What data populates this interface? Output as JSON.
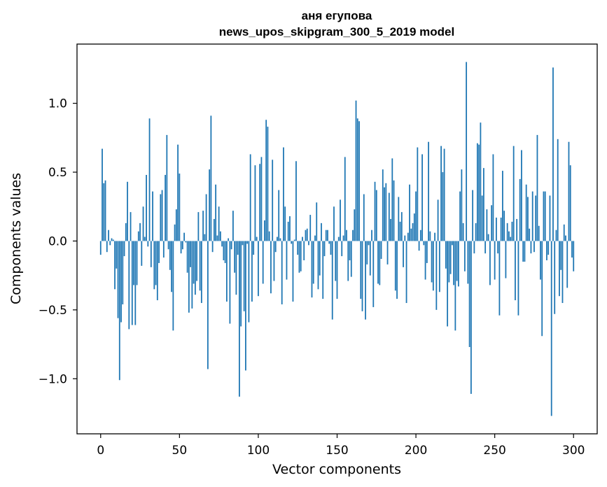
{
  "chart_data": {
    "type": "bar",
    "title": "аня егупова",
    "subtitle": "news_upos_skipgram_300_5_2019 model",
    "xlabel": "Vector components",
    "ylabel": "Components values",
    "xlim": [
      -15,
      315
    ],
    "ylim": [
      -1.4,
      1.43
    ],
    "xticks": [
      0,
      50,
      100,
      150,
      200,
      250,
      300
    ],
    "yticks": [
      -1.0,
      -0.5,
      0.0,
      0.5,
      1.0
    ],
    "ytick_labels": [
      "−1.0",
      "−0.5",
      "0.0",
      "0.5",
      "1.0"
    ],
    "grid": false,
    "legend": "none",
    "bar_color": "#1f77b4",
    "values": [
      -0.1,
      0.67,
      0.42,
      0.44,
      -0.08,
      0.08,
      -0.03,
      0.02,
      0.01,
      -0.35,
      -0.2,
      -0.56,
      -1.01,
      -0.59,
      -0.46,
      -0.11,
      0.13,
      0.43,
      -0.64,
      0.21,
      -0.61,
      -0.32,
      -0.61,
      -0.32,
      0.07,
      0.13,
      -0.18,
      0.25,
      0.03,
      0.48,
      -0.04,
      0.89,
      -0.19,
      0.36,
      -0.35,
      -0.32,
      -0.43,
      -0.16,
      0.34,
      0.37,
      -0.12,
      0.48,
      0.77,
      -0.06,
      -0.21,
      -0.37,
      -0.65,
      0.12,
      0.23,
      0.7,
      0.49,
      -0.09,
      -0.06,
      0.06,
      -0.01,
      -0.23,
      -0.52,
      -0.19,
      -0.49,
      -0.31,
      -0.39,
      -0.29,
      0.21,
      -0.36,
      -0.45,
      0.22,
      0.05,
      0.34,
      -0.93,
      0.52,
      0.91,
      -0.08,
      0.16,
      0.41,
      0.04,
      0.25,
      0.07,
      -0.04,
      -0.14,
      -0.16,
      -0.44,
      0.02,
      -0.6,
      -0.06,
      0.22,
      -0.23,
      -0.39,
      -0.1,
      -1.13,
      -0.62,
      -0.03,
      -0.51,
      -0.94,
      -0.02,
      -0.59,
      0.63,
      -0.44,
      -0.1,
      0.55,
      0.03,
      -0.4,
      0.56,
      0.61,
      -0.31,
      0.15,
      0.88,
      0.83,
      0.07,
      -0.38,
      0.59,
      -0.29,
      -0.08,
      0.03,
      0.37,
      0.02,
      -0.46,
      0.68,
      0.25,
      -0.28,
      0.14,
      0.18,
      -0.02,
      -0.44,
      0.01,
      0.58,
      -0.1,
      -0.23,
      -0.22,
      0.03,
      -0.14,
      0.08,
      0.09,
      -0.03,
      0.19,
      -0.41,
      -0.31,
      0.04,
      0.28,
      -0.35,
      -0.25,
      0.13,
      -0.42,
      -0.11,
      0.08,
      0.08,
      -0.02,
      -0.1,
      -0.57,
      0.25,
      -0.29,
      -0.42,
      0.03,
      0.3,
      -0.11,
      0.04,
      0.61,
      0.08,
      -0.29,
      -0.14,
      -0.26,
      0.08,
      0.23,
      1.02,
      0.89,
      0.87,
      -0.42,
      -0.51,
      0.34,
      -0.57,
      -0.17,
      -0.03,
      -0.25,
      0.08,
      -0.48,
      0.43,
      0.37,
      -0.31,
      -0.32,
      -0.13,
      0.52,
      0.39,
      0.42,
      -0.17,
      0.35,
      0.16,
      0.6,
      0.44,
      -0.36,
      -0.42,
      0.32,
      0.14,
      0.21,
      -0.19,
      0.04,
      -0.45,
      0.06,
      0.41,
      0.09,
      0.13,
      0.2,
      0.36,
      0.68,
      -0.07,
      0.08,
      0.63,
      -0.03,
      -0.28,
      -0.16,
      0.72,
      0.07,
      -0.3,
      -0.36,
      0.06,
      -0.5,
      0.3,
      -0.37,
      0.69,
      0.5,
      0.67,
      -0.2,
      -0.62,
      -0.3,
      -0.24,
      -0.03,
      -0.32,
      -0.65,
      -0.29,
      -0.33,
      0.36,
      0.52,
      0.13,
      -0.22,
      1.3,
      -0.31,
      -0.77,
      -1.11,
      0.37,
      -0.09,
      0.13,
      0.71,
      0.7,
      0.86,
      0.33,
      0.53,
      -0.09,
      0.23,
      0.05,
      -0.32,
      0.26,
      0.63,
      -0.28,
      0.17,
      -0.09,
      -0.54,
      0.17,
      0.51,
      0.22,
      -0.27,
      0.13,
      0.07,
      0.03,
      0.14,
      0.69,
      -0.43,
      0.16,
      -0.54,
      0.45,
      0.66,
      -0.15,
      -0.15,
      0.41,
      0.32,
      0.09,
      -0.09,
      0.36,
      -0.08,
      0.33,
      0.77,
      0.11,
      -0.28,
      -0.69,
      0.36,
      0.36,
      -0.14,
      -0.1,
      0.33,
      -1.27,
      1.26,
      -0.53,
      0.08,
      0.74,
      -0.4,
      -0.21,
      -0.45,
      0.12,
      0.04,
      -0.34,
      0.72,
      0.55,
      -0.12,
      -0.22
    ]
  }
}
